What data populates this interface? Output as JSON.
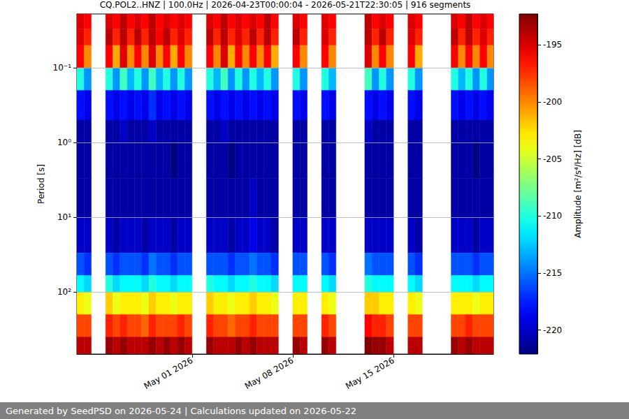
{
  "chart_data": {
    "type": "heatmap",
    "title": "CQ.POL2..HNZ | 100.0Hz | 2026-04-23T00:00:04 - 2026-05-21T22:30:05 | 916 segments",
    "y_label": "Period [s]",
    "footer": "Generated by SeedPSD on 2026-05-24 | Calculations updated on 2026-05-22",
    "log": "y",
    "grid": true,
    "xlim": [
      "2026-04-23T00:00:04",
      "2026-05-21T22:30:05"
    ],
    "xticks": [
      {
        "value": "2026-05-01T00:00:00",
        "label": "May 01 2026"
      },
      {
        "value": "2026-05-08T00:00:00",
        "label": "May 08 2026"
      },
      {
        "value": "2026-05-15T00:00:00",
        "label": "May 15 2026"
      }
    ],
    "ylim": [
      0.019,
      676
    ],
    "yticks": [
      {
        "value": 0.1,
        "label": "10⁻¹"
      },
      {
        "value": 1,
        "label": "10⁰"
      },
      {
        "value": 10,
        "label": "10¹"
      },
      {
        "value": 100,
        "label": "10²"
      }
    ],
    "x_edges": [
      "2026-04-23T00:00:00",
      "2026-04-23T12:00:00",
      "2026-04-24T00:00:00",
      "2026-04-24T12:00:00",
      "2026-04-25T00:00:00",
      "2026-04-25T12:00:00",
      "2026-04-26T00:00:00",
      "2026-04-26T12:00:00",
      "2026-04-27T00:00:00",
      "2026-04-27T12:00:00",
      "2026-04-28T00:00:00",
      "2026-04-28T12:00:00",
      "2026-04-29T00:00:00",
      "2026-04-29T12:00:00",
      "2026-04-30T00:00:00",
      "2026-04-30T12:00:00",
      "2026-05-01T00:00:00",
      "2026-05-01T12:00:00",
      "2026-05-02T00:00:00",
      "2026-05-02T12:00:00",
      "2026-05-03T00:00:00",
      "2026-05-03T12:00:00",
      "2026-05-04T00:00:00",
      "2026-05-04T12:00:00",
      "2026-05-05T00:00:00",
      "2026-05-05T12:00:00",
      "2026-05-06T00:00:00",
      "2026-05-06T12:00:00",
      "2026-05-07T00:00:00",
      "2026-05-07T12:00:00",
      "2026-05-08T00:00:00",
      "2026-05-08T12:00:00",
      "2026-05-09T00:00:00",
      "2026-05-09T12:00:00",
      "2026-05-10T00:00:00",
      "2026-05-10T12:00:00",
      "2026-05-11T00:00:00",
      "2026-05-11T12:00:00",
      "2026-05-12T00:00:00",
      "2026-05-12T12:00:00",
      "2026-05-13T00:00:00",
      "2026-05-13T12:00:00",
      "2026-05-14T00:00:00",
      "2026-05-14T12:00:00",
      "2026-05-15T00:00:00",
      "2026-05-15T12:00:00",
      "2026-05-16T00:00:00",
      "2026-05-16T12:00:00",
      "2026-05-17T00:00:00",
      "2026-05-17T12:00:00",
      "2026-05-18T00:00:00",
      "2026-05-18T12:00:00",
      "2026-05-19T00:00:00",
      "2026-05-19T12:00:00",
      "2026-05-20T00:00:00",
      "2026-05-20T12:00:00",
      "2026-05-21T00:00:00",
      "2026-05-21T12:00:00",
      "2026-05-22T00:00:00"
    ],
    "period_edges": [
      0.019,
      0.03,
      0.05,
      0.1,
      0.2,
      0.5,
      1,
      3,
      10,
      30,
      60,
      100,
      200,
      400,
      676
    ],
    "cells": [
      [
        -195,
        -195,
        -196,
        -210,
        -218,
        -221,
        -221,
        -221,
        -220,
        -216,
        -211,
        -203,
        -198,
        -194
      ],
      [
        -196,
        -197,
        -200,
        -214,
        -219,
        -221,
        -221,
        -221,
        -220,
        -217,
        -212,
        -204,
        -198,
        -194
      ],
      null,
      null,
      [
        -195,
        -194,
        -196,
        -210,
        -218,
        -221,
        -221,
        -221,
        -220,
        -216,
        -210,
        -202,
        -197,
        -193
      ],
      [
        -196,
        -197,
        -201,
        -214,
        -219,
        -221,
        -221,
        -221,
        -221,
        -217,
        -212,
        -204,
        -198,
        -194
      ],
      [
        -194,
        -194,
        -195,
        -209,
        -218,
        -220,
        -221,
        -221,
        -220,
        -216,
        -211,
        -203,
        -197,
        -193
      ],
      [
        -196,
        -197,
        -200,
        -213,
        -219,
        -221,
        -221,
        -221,
        -220,
        -216,
        -211,
        -203,
        -198,
        -194
      ],
      [
        -195,
        -194,
        -196,
        -210,
        -218,
        -221,
        -221,
        -221,
        -220,
        -216,
        -211,
        -203,
        -198,
        -194
      ],
      [
        -196,
        -197,
        -200,
        -214,
        -219,
        -221,
        -221,
        -221,
        -221,
        -217,
        -212,
        -204,
        -199,
        -194
      ],
      [
        -194,
        -194,
        -195,
        -209,
        -217,
        -220,
        -221,
        -221,
        -220,
        -215,
        -210,
        -202,
        -197,
        -193
      ],
      [
        -196,
        -196,
        -200,
        -213,
        -219,
        -221,
        -221,
        -221,
        -220,
        -216,
        -211,
        -203,
        -198,
        -194
      ],
      [
        -195,
        -194,
        -196,
        -210,
        -218,
        -221,
        -221,
        -221,
        -220,
        -216,
        -211,
        -203,
        -198,
        -193
      ],
      [
        -196,
        -197,
        -201,
        -214,
        -219,
        -221,
        -222,
        -221,
        -221,
        -217,
        -212,
        -204,
        -198,
        -194
      ],
      [
        -195,
        -195,
        -196,
        -210,
        -218,
        -221,
        -221,
        -221,
        -220,
        -216,
        -211,
        -203,
        -197,
        -193
      ],
      [
        -196,
        -197,
        -200,
        -214,
        -219,
        -221,
        -221,
        -221,
        -220,
        -216,
        -211,
        -203,
        -198,
        -194
      ],
      null,
      null,
      [
        -195,
        -194,
        -196,
        -210,
        -218,
        -221,
        -221,
        -221,
        -220,
        -216,
        -210,
        -202,
        -197,
        -193
      ],
      [
        -196,
        -197,
        -200,
        -213,
        -219,
        -221,
        -221,
        -221,
        -220,
        -216,
        -211,
        -203,
        -198,
        -194
      ],
      [
        -194,
        -194,
        -195,
        -209,
        -218,
        -220,
        -221,
        -221,
        -220,
        -216,
        -211,
        -203,
        -198,
        -194
      ],
      [
        -196,
        -197,
        -201,
        -214,
        -219,
        -221,
        -222,
        -221,
        -221,
        -217,
        -212,
        -204,
        -199,
        -194
      ],
      [
        -195,
        -195,
        -196,
        -210,
        -218,
        -221,
        -221,
        -221,
        -220,
        -216,
        -211,
        -203,
        -198,
        -193
      ],
      [
        -196,
        -197,
        -200,
        -214,
        -219,
        -221,
        -221,
        -221,
        -220,
        -216,
        -211,
        -203,
        -198,
        -194
      ],
      [
        -195,
        -194,
        -196,
        -210,
        -218,
        -221,
        -221,
        -220,
        -219,
        -215,
        -210,
        -202,
        -197,
        -193
      ],
      [
        -196,
        -197,
        -200,
        -213,
        -219,
        -221,
        -221,
        -221,
        -220,
        -216,
        -211,
        -203,
        -198,
        -194
      ],
      [
        -194,
        -194,
        -196,
        -210,
        -218,
        -221,
        -221,
        -221,
        -220,
        -216,
        -211,
        -203,
        -198,
        -194
      ],
      [
        -196,
        -197,
        -201,
        -214,
        -219,
        -221,
        -221,
        -221,
        -221,
        -217,
        -212,
        -204,
        -198,
        -194
      ],
      null,
      null,
      [
        -195,
        -194,
        -196,
        -210,
        -218,
        -221,
        -221,
        -221,
        -220,
        -216,
        -211,
        -203,
        -198,
        -193
      ],
      [
        -196,
        -197,
        -200,
        -214,
        -219,
        -221,
        -221,
        -221,
        -220,
        -216,
        -211,
        -203,
        -198,
        -194
      ],
      null,
      null,
      [
        -195,
        -195,
        -196,
        -210,
        -218,
        -221,
        -221,
        -221,
        -220,
        -216,
        -211,
        -203,
        -197,
        -193
      ],
      [
        -196,
        -197,
        -200,
        -213,
        -219,
        -221,
        -221,
        -221,
        -220,
        -217,
        -212,
        -204,
        -198,
        -194
      ],
      null,
      null,
      null,
      null,
      [
        -194,
        -194,
        -195,
        -209,
        -218,
        -220,
        -221,
        -221,
        -220,
        -215,
        -210,
        -202,
        -196,
        -192
      ],
      [
        -196,
        -197,
        -200,
        -214,
        -219,
        -221,
        -221,
        -221,
        -220,
        -216,
        -211,
        -202,
        -197,
        -193
      ],
      [
        -195,
        -194,
        -196,
        -210,
        -218,
        -221,
        -221,
        -221,
        -220,
        -216,
        -211,
        -203,
        -197,
        -193
      ],
      [
        -196,
        -197,
        -200,
        -214,
        -219,
        -221,
        -221,
        -221,
        -220,
        -216,
        -211,
        -203,
        -198,
        -194
      ],
      null,
      null,
      [
        -195,
        -195,
        -196,
        -210,
        -218,
        -221,
        -221,
        -221,
        -220,
        -216,
        -211,
        -203,
        -198,
        -194
      ],
      [
        -196,
        -197,
        -201,
        -214,
        -219,
        -221,
        -221,
        -221,
        -221,
        -217,
        -212,
        -204,
        -198,
        -194
      ],
      null,
      null,
      null,
      null,
      [
        -195,
        -194,
        -196,
        -210,
        -218,
        -221,
        -221,
        -221,
        -220,
        -216,
        -211,
        -203,
        -198,
        -193
      ],
      [
        -196,
        -197,
        -200,
        -213,
        -219,
        -221,
        -221,
        -221,
        -220,
        -216,
        -211,
        -203,
        -198,
        -194
      ],
      [
        -194,
        -194,
        -196,
        -210,
        -218,
        -221,
        -221,
        -221,
        -220,
        -216,
        -211,
        -203,
        -197,
        -193
      ],
      [
        -196,
        -197,
        -200,
        -214,
        -219,
        -221,
        -222,
        -221,
        -221,
        -217,
        -212,
        -204,
        -198,
        -194
      ],
      [
        -195,
        -195,
        -196,
        -210,
        -218,
        -221,
        -221,
        -221,
        -220,
        -216,
        -211,
        -203,
        -198,
        -194
      ],
      [
        -196,
        -197,
        -200,
        -214,
        -219,
        -221,
        -221,
        -221,
        -220,
        -216,
        -211,
        -203,
        -198,
        -194
      ]
    ],
    "colorbar": {
      "label": "Amplitude [m²/s⁴/Hz] [dB]",
      "lim": [
        -222.1,
        -192.3
      ],
      "ticks": [
        -220,
        -215,
        -210,
        -205,
        -200,
        -195
      ]
    }
  }
}
